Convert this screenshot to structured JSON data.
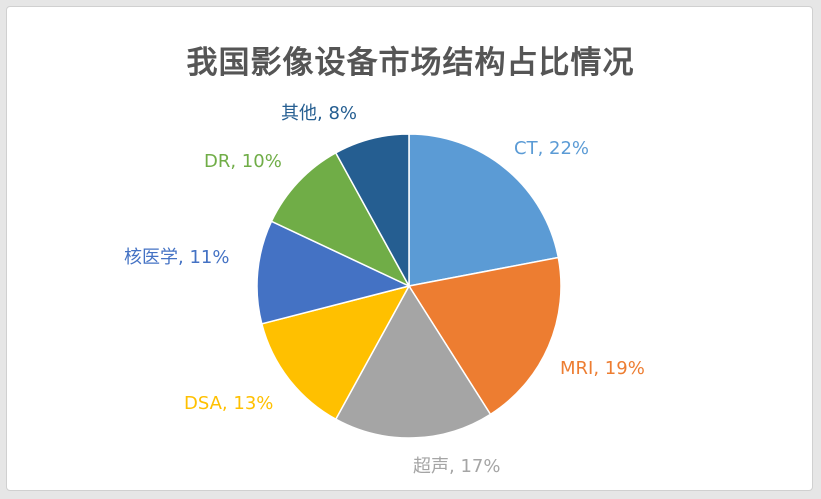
{
  "chart_data": {
    "type": "pie",
    "title": "我国影像设备市场结构占比情况",
    "slices": [
      {
        "name": "CT",
        "value": 22,
        "label": "CT, 22%",
        "color": "#5b9bd5"
      },
      {
        "name": "MRI",
        "value": 19,
        "label": "MRI, 19%",
        "color": "#ed7d31"
      },
      {
        "name": "超声",
        "value": 17,
        "label": "超声, 17%",
        "color": "#a5a5a5"
      },
      {
        "name": "DSA",
        "value": 13,
        "label": "DSA, 13%",
        "color": "#ffc000"
      },
      {
        "name": "核医学",
        "value": 11,
        "label": "核医学, 11%",
        "color": "#4472c4"
      },
      {
        "name": "DR",
        "value": 10,
        "label": "DR, 10%",
        "color": "#70ad47"
      },
      {
        "name": "其他",
        "value": 8,
        "label": "其他, 8%",
        "color": "#255e91"
      }
    ]
  }
}
